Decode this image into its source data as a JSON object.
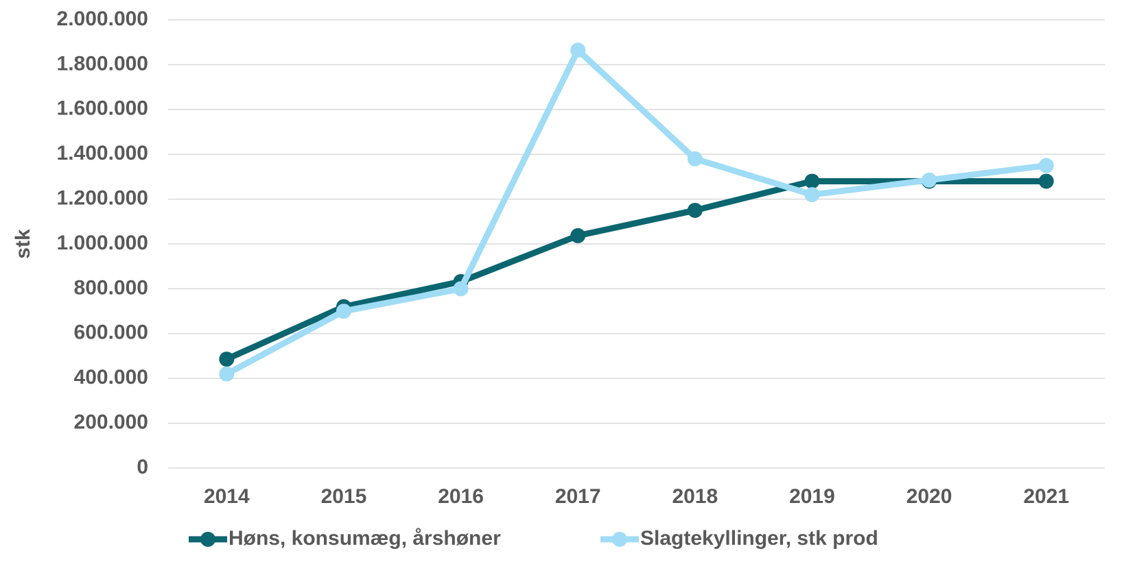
{
  "chart_data": {
    "type": "line",
    "y_label": "stk",
    "categories": [
      "2014",
      "2015",
      "2016",
      "2017",
      "2018",
      "2019",
      "2020",
      "2021"
    ],
    "series": [
      {
        "name": "Høns, konsumæg, årshøner",
        "color": "#0b6670",
        "values": [
          486000,
          720000,
          832000,
          1037000,
          1150000,
          1280000,
          1280000,
          1280000
        ]
      },
      {
        "name": "Slagtekyllinger, stk prod",
        "color": "#a0dcf5",
        "values": [
          420000,
          700000,
          800000,
          1865000,
          1380000,
          1220000,
          1285000,
          1350000
        ]
      }
    ],
    "ylim": [
      0,
      2000000
    ],
    "yticks": [
      0,
      {
        "value": 200000,
        "label": "200.000"
      },
      {
        "value": 400000,
        "label": "400.000"
      },
      {
        "value": 600000,
        "label": "600.000"
      },
      {
        "value": 800000,
        "label": "800.000"
      },
      {
        "value": 1000000,
        "label": "1.000.000"
      },
      {
        "value": 1200000,
        "label": "1.200.000"
      },
      {
        "value": 1400000,
        "label": "1.400.000"
      },
      {
        "value": 1600000,
        "label": "1.600.000"
      },
      {
        "value": 1800000,
        "label": "1.800.000"
      },
      {
        "value": 2000000,
        "label": "2.000.000"
      }
    ],
    "grid": true,
    "legend": "bottom"
  }
}
